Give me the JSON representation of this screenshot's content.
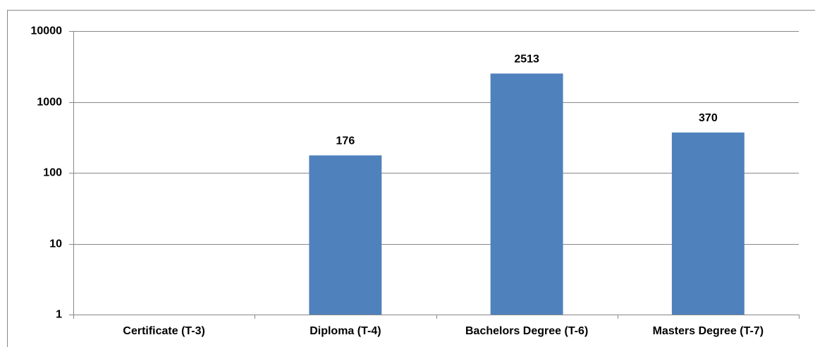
{
  "chart_data": {
    "type": "bar",
    "categories": [
      "Certificate (T-3)",
      "Diploma (T-4)",
      "Bachelors Degree (T-6)",
      "Masters Degree (T-7)"
    ],
    "values": [
      null,
      176,
      2513,
      370
    ],
    "color": "#4f81bd",
    "ylim": [
      1,
      10000
    ],
    "yticks": [
      1,
      10,
      100,
      1000,
      10000
    ],
    "log_scale": true,
    "grid": true
  }
}
